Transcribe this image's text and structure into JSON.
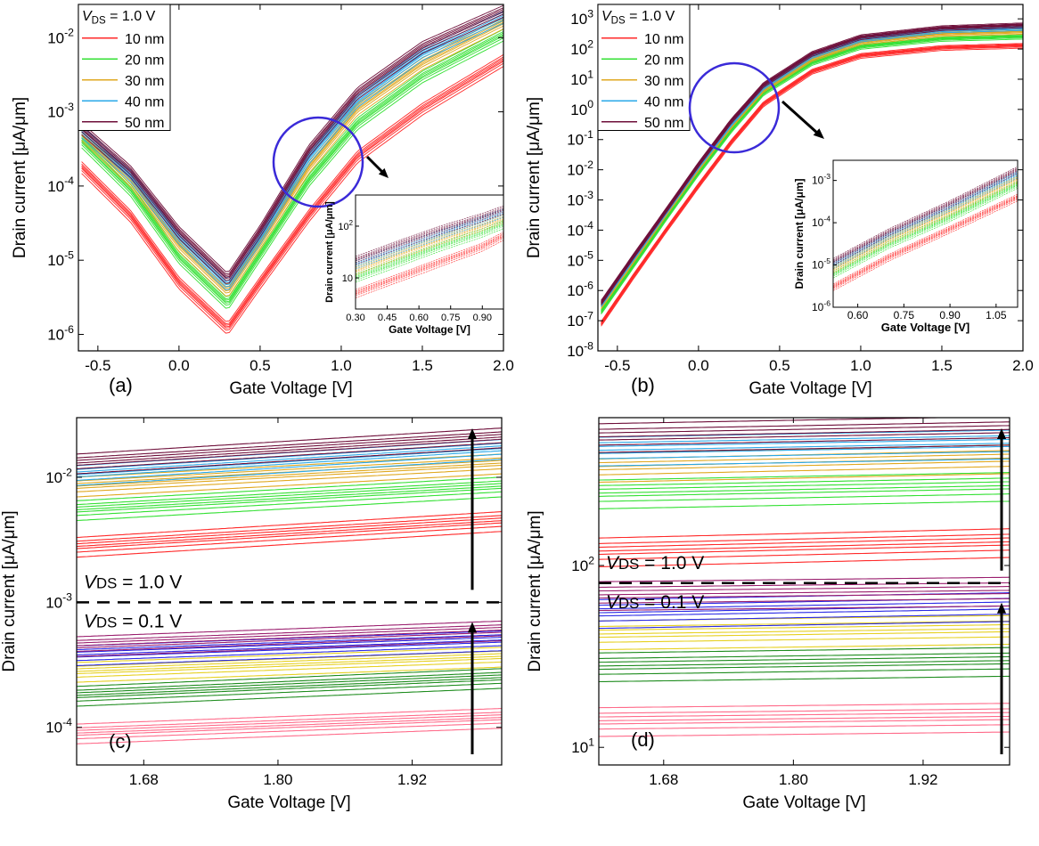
{
  "figure": {
    "legend_vds_var": "V",
    "legend_vds_sub": "DS",
    "legend_vds_val": " = 1.0 V",
    "vds_low_val": " = 0.1 V",
    "colors": {
      "10 nm": "#ff2a2a",
      "20 nm": "#33e033",
      "30 nm": "#e0a820",
      "40 nm": "#2aa8e8",
      "50 nm": "#6e0f3a",
      "low10": "#ff6b8a",
      "low20": "#1e8c1e",
      "low30": "#e6d020",
      "low40": "#2a2ae6",
      "low50": "#9a1e6e",
      "highlight_circle": "#3a2ad8"
    }
  },
  "chart_data": [
    {
      "panel": "(a)",
      "type": "line",
      "scale_y": "log",
      "xlabel": "Gate Voltage [V]",
      "ylabel": "Drain current [μA/μm]",
      "xlim": [
        -0.62,
        2.0
      ],
      "ylim": [
        6e-07,
        0.028
      ],
      "xticks": [
        "-0.5",
        "0.0",
        "0.5",
        "1.0",
        "1.5",
        "2.0"
      ],
      "yticks": [
        "10-6",
        "10-5",
        "10-4",
        "10-3",
        "10-2"
      ],
      "legend_title": "VDS = 1.0 V",
      "legend": [
        "10 nm",
        "20 nm",
        "30 nm",
        "40 nm",
        "50 nm"
      ],
      "series": [
        {
          "name": "10 nm",
          "x": [
            -0.6,
            -0.3,
            0.0,
            0.3,
            0.5,
            0.8,
            1.1,
            1.5,
            2.0
          ],
          "y": [
            0.00018,
            4e-05,
            5e-06,
            1.2e-06,
            5e-06,
            4e-05,
            0.00025,
            0.0011,
            0.005
          ]
        },
        {
          "name": "20 nm",
          "x": [
            -0.6,
            -0.3,
            0.0,
            0.3,
            0.5,
            0.8,
            1.1,
            1.5,
            2.0
          ],
          "y": [
            0.0004,
            9e-05,
            1.1e-05,
            2.6e-06,
            1.2e-05,
            0.00012,
            0.0007,
            0.003,
            0.011
          ]
        },
        {
          "name": "30 nm",
          "x": [
            -0.6,
            -0.3,
            0.0,
            0.3,
            0.5,
            0.8,
            1.1,
            1.5,
            2.0
          ],
          "y": [
            0.0005,
            0.00012,
            1.6e-05,
            3.8e-06,
            1.7e-05,
            0.00018,
            0.0011,
            0.0045,
            0.016
          ]
        },
        {
          "name": "40 nm",
          "x": [
            -0.6,
            -0.3,
            0.0,
            0.3,
            0.5,
            0.8,
            1.1,
            1.5,
            2.0
          ],
          "y": [
            0.00055,
            0.00014,
            2e-05,
            4.6e-06,
            2e-05,
            0.00024,
            0.0014,
            0.006,
            0.019
          ]
        },
        {
          "name": "50 nm",
          "x": [
            -0.6,
            -0.3,
            0.0,
            0.3,
            0.5,
            0.8,
            1.1,
            1.5,
            2.0
          ],
          "y": [
            0.0006,
            0.00016,
            2.4e-05,
            5.6e-06,
            2.5e-05,
            0.0003,
            0.0018,
            0.0075,
            0.023
          ]
        }
      ],
      "inset": {
        "xlabel": "Gate Voltage [V]",
        "ylabel": "Drain current [μA/μm]",
        "xlim": [
          0.3,
          1.0
        ],
        "ylim": [
          2.5,
          400
        ],
        "xticks": [
          "0.30",
          "0.45",
          "0.60",
          "0.75",
          "0.90"
        ],
        "yticks": [
          "10",
          "10 2"
        ],
        "series": [
          {
            "name": "10 nm",
            "x": [
              0.3,
              0.5,
              0.7,
              0.9,
              1.0
            ],
            "y": [
              5,
              10,
              20,
              40,
              65
            ]
          },
          {
            "name": "20 nm",
            "x": [
              0.3,
              0.5,
              0.7,
              0.9,
              1.0
            ],
            "y": [
              10,
              20,
              40,
              75,
              110
            ]
          },
          {
            "name": "30 nm",
            "x": [
              0.3,
              0.5,
              0.7,
              0.9,
              1.0
            ],
            "y": [
              14,
              28,
              55,
              100,
              140
            ]
          },
          {
            "name": "40 nm",
            "x": [
              0.3,
              0.5,
              0.7,
              0.9,
              1.0
            ],
            "y": [
              18,
              36,
              70,
              130,
              180
            ]
          },
          {
            "name": "50 nm",
            "x": [
              0.3,
              0.5,
              0.7,
              0.9,
              1.0
            ],
            "y": [
              22,
              44,
              85,
              150,
              210
            ]
          }
        ]
      }
    },
    {
      "panel": "(b)",
      "type": "line",
      "scale_y": "log",
      "xlabel": "Gate Voltage [V]",
      "ylabel": "Drain current [μA/μm]",
      "xlim": [
        -0.62,
        2.0
      ],
      "ylim": [
        1e-08,
        3000
      ],
      "xticks": [
        "-0.5",
        "0.0",
        "0.5",
        "1.0",
        "1.5",
        "2.0"
      ],
      "yticks": [
        "10-8",
        "10-7",
        "10-6",
        "10-5",
        "10-4",
        "10-3",
        "10-2",
        "10-1",
        "100",
        "101",
        "102",
        "103"
      ],
      "legend_title": "VDS = 1.0 V",
      "legend": [
        "10 nm",
        "20 nm",
        "30 nm",
        "40 nm",
        "50 nm"
      ],
      "series": [
        {
          "name": "10 nm",
          "x": [
            -0.6,
            -0.4,
            -0.2,
            0.0,
            0.2,
            0.4,
            0.7,
            1.0,
            1.5,
            2.0
          ],
          "y": [
            8e-08,
            3e-06,
            0.0001,
            0.003,
            0.08,
            1.5,
            18,
            60,
            110,
            130
          ]
        },
        {
          "name": "20 nm",
          "x": [
            -0.6,
            -0.4,
            -0.2,
            0.0,
            0.2,
            0.4,
            0.7,
            1.0,
            1.5,
            2.0
          ],
          "y": [
            2e-07,
            7e-06,
            0.00025,
            0.008,
            0.2,
            3.5,
            35,
            120,
            220,
            260
          ]
        },
        {
          "name": "30 nm",
          "x": [
            -0.6,
            -0.4,
            -0.2,
            0.0,
            0.2,
            0.4,
            0.7,
            1.0,
            1.5,
            2.0
          ],
          "y": [
            3e-07,
            1e-05,
            0.00035,
            0.011,
            0.28,
            4.5,
            48,
            170,
            320,
            380
          ]
        },
        {
          "name": "40 nm",
          "x": [
            -0.6,
            -0.4,
            -0.2,
            0.0,
            0.2,
            0.4,
            0.7,
            1.0,
            1.5,
            2.0
          ],
          "y": [
            3.5e-07,
            1.2e-05,
            0.0004,
            0.013,
            0.33,
            5.5,
            60,
            210,
            420,
            500
          ]
        },
        {
          "name": "50 nm",
          "x": [
            -0.6,
            -0.4,
            -0.2,
            0.0,
            0.2,
            0.4,
            0.7,
            1.0,
            1.5,
            2.0
          ],
          "y": [
            4e-07,
            1.4e-05,
            0.00045,
            0.015,
            0.4,
            6.5,
            70,
            250,
            500,
            620
          ]
        }
      ],
      "inset": {
        "xlabel": "Gate Voltage [V]",
        "ylabel": "Drain current [μA/μm]",
        "xlim": [
          0.52,
          1.12
        ],
        "ylim": [
          1e-06,
          0.003
        ],
        "xticks": [
          "0.60",
          "0.75",
          "0.90",
          "1.05"
        ],
        "yticks": [
          "10-6",
          "10-5",
          "10-4",
          "10-3"
        ],
        "series": [
          {
            "name": "10 nm",
            "x": [
              0.52,
              0.7,
              0.9,
              1.12
            ],
            "y": [
              3e-06,
              1.5e-05,
              7e-05,
              0.0004
            ]
          },
          {
            "name": "20 nm",
            "x": [
              0.52,
              0.7,
              0.9,
              1.12
            ],
            "y": [
              6e-06,
              3e-05,
              0.00013,
              0.0008
            ]
          },
          {
            "name": "30 nm",
            "x": [
              0.52,
              0.7,
              0.9,
              1.12
            ],
            "y": [
              8e-06,
              4e-05,
              0.00018,
              0.0011
            ]
          },
          {
            "name": "40 nm",
            "x": [
              0.52,
              0.7,
              0.9,
              1.12
            ],
            "y": [
              1e-05,
              5e-05,
              0.00023,
              0.0014
            ]
          },
          {
            "name": "50 nm",
            "x": [
              0.52,
              0.7,
              0.9,
              1.12
            ],
            "y": [
              1.2e-05,
              6e-05,
              0.00028,
              0.0018
            ]
          }
        ]
      }
    },
    {
      "panel": "(c)",
      "type": "line",
      "scale_y": "log",
      "xlabel": "Gate Voltage [V]",
      "ylabel": "Drain current [μA/μm]",
      "xlim": [
        1.62,
        2.0
      ],
      "ylim": [
        5e-05,
        0.03
      ],
      "xticks": [
        "1.68",
        "1.80",
        "1.92"
      ],
      "yticks": [
        "10-4",
        "10-3",
        "10-2"
      ],
      "divider_y": 0.001,
      "annotations": [
        "VDS = 1.0 V",
        "VDS = 0.1 V"
      ],
      "series": [
        {
          "name": "10 nm",
          "vds": 1.0,
          "x": [
            1.62,
            2.0
          ],
          "y": [
            0.0028,
            0.0045
          ]
        },
        {
          "name": "20 nm",
          "vds": 1.0,
          "x": [
            1.62,
            2.0
          ],
          "y": [
            0.0055,
            0.0085
          ]
        },
        {
          "name": "30 nm",
          "vds": 1.0,
          "x": [
            1.62,
            2.0
          ],
          "y": [
            0.0085,
            0.013
          ]
        },
        {
          "name": "40 nm",
          "vds": 1.0,
          "x": [
            1.62,
            2.0
          ],
          "y": [
            0.0105,
            0.017
          ]
        },
        {
          "name": "50 nm",
          "vds": 1.0,
          "x": [
            1.62,
            2.0
          ],
          "y": [
            0.013,
            0.021
          ]
        },
        {
          "name": "10 nm",
          "vds": 0.1,
          "x": [
            1.62,
            2.0
          ],
          "y": [
            9e-05,
            0.00012
          ]
        },
        {
          "name": "20 nm",
          "vds": 0.1,
          "x": [
            1.62,
            2.0
          ],
          "y": [
            0.00018,
            0.00025
          ]
        },
        {
          "name": "30 nm",
          "vds": 0.1,
          "x": [
            1.62,
            2.0
          ],
          "y": [
            0.00028,
            0.00037
          ]
        },
        {
          "name": "40 nm",
          "vds": 0.1,
          "x": [
            1.62,
            2.0
          ],
          "y": [
            0.00038,
            0.0005
          ]
        },
        {
          "name": "50 nm",
          "vds": 0.1,
          "x": [
            1.62,
            2.0
          ],
          "y": [
            0.00045,
            0.0006
          ]
        }
      ]
    },
    {
      "panel": "(d)",
      "type": "line",
      "scale_y": "log",
      "xlabel": "Gate Voltage [V]",
      "ylabel": "Drain current [μA/μm]",
      "xlim": [
        1.62,
        2.0
      ],
      "ylim": [
        8,
        650
      ],
      "xticks": [
        "1.68",
        "1.80",
        "1.92"
      ],
      "yticks": [
        "101",
        "102"
      ],
      "divider_y": 80,
      "annotations": [
        "VDS = 1.0 V",
        "VDS = 0.1 V"
      ],
      "series": [
        {
          "name": "10 nm",
          "vds": 1.0,
          "x": [
            1.62,
            2.0
          ],
          "y": [
            120,
            135
          ]
        },
        {
          "name": "20 nm",
          "vds": 1.0,
          "x": [
            1.62,
            2.0
          ],
          "y": [
            250,
            275
          ]
        },
        {
          "name": "30 nm",
          "vds": 1.0,
          "x": [
            1.62,
            2.0
          ],
          "y": [
            350,
            390
          ]
        },
        {
          "name": "40 nm",
          "vds": 1.0,
          "x": [
            1.62,
            2.0
          ],
          "y": [
            430,
            470
          ]
        },
        {
          "name": "50 nm",
          "vds": 1.0,
          "x": [
            1.62,
            2.0
          ],
          "y": [
            510,
            560
          ]
        },
        {
          "name": "10 nm",
          "vds": 0.1,
          "x": [
            1.62,
            2.0
          ],
          "y": [
            14,
            14.8
          ]
        },
        {
          "name": "20 nm",
          "vds": 0.1,
          "x": [
            1.62,
            2.0
          ],
          "y": [
            28,
            30
          ]
        },
        {
          "name": "30 nm",
          "vds": 0.1,
          "x": [
            1.62,
            2.0
          ],
          "y": [
            42,
            45
          ]
        },
        {
          "name": "40 nm",
          "vds": 0.1,
          "x": [
            1.62,
            2.0
          ],
          "y": [
            55,
            60
          ]
        },
        {
          "name": "50 nm",
          "vds": 0.1,
          "x": [
            1.62,
            2.0
          ],
          "y": [
            69,
            73
          ]
        }
      ]
    }
  ]
}
